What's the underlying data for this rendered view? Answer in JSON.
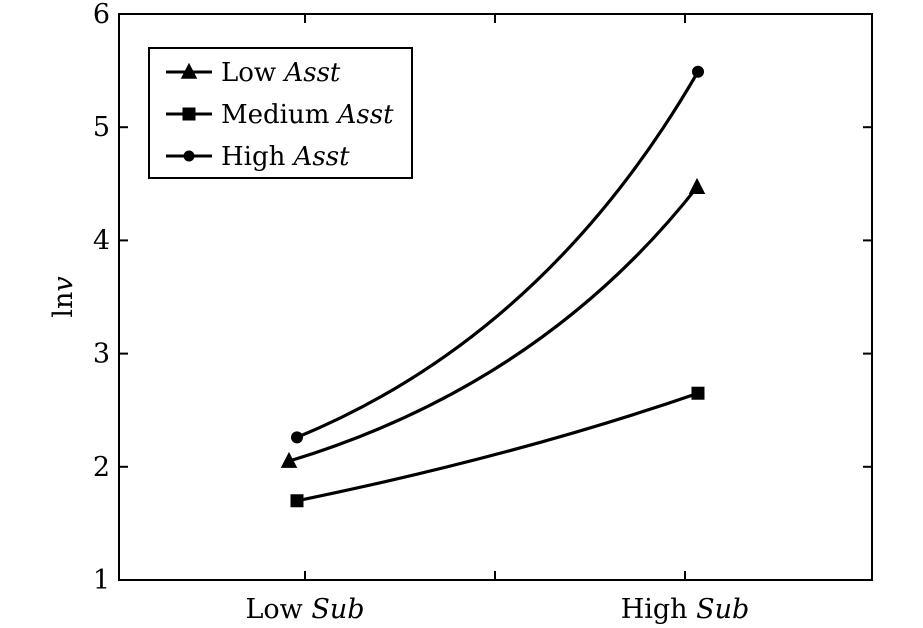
{
  "chart_data": {
    "type": "line",
    "categories": [
      "Low Sub",
      "High Sub"
    ],
    "category_labels": [
      {
        "plain": "Low ",
        "italic": "Sub"
      },
      {
        "plain": "High ",
        "italic": "Sub"
      }
    ],
    "ylabel": {
      "plain": "ln",
      "italic": "v"
    },
    "ylim": [
      1,
      6
    ],
    "yticks": [
      "1",
      "2",
      "3",
      "4",
      "5",
      "6"
    ],
    "grid": false,
    "legend_placement": "top-left",
    "series": [
      {
        "name": "Low Asst",
        "legend_plain": "Low ",
        "legend_italic": "Asst",
        "marker": "triangle",
        "values": [
          2.05,
          4.47
        ],
        "curve": "convex"
      },
      {
        "name": "Medium Asst",
        "legend_plain": "Medium ",
        "legend_italic": "Asst",
        "marker": "square",
        "values": [
          1.7,
          2.65
        ],
        "curve": "slightly-convex"
      },
      {
        "name": "High Asst",
        "legend_plain": "High ",
        "legend_italic": "Asst",
        "marker": "circle",
        "values": [
          2.26,
          5.49
        ],
        "curve": "convex"
      }
    ],
    "line_color": "#000000"
  }
}
